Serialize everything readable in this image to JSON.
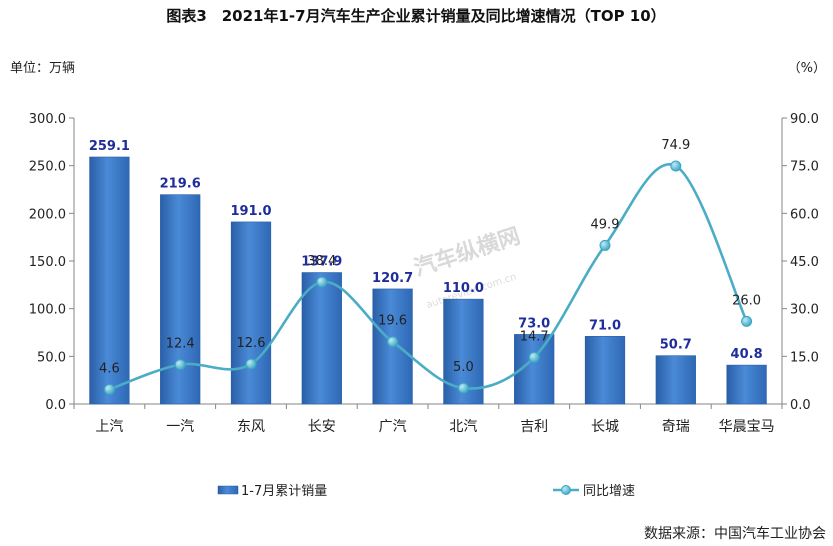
{
  "title": "图表3　2021年1-7月汽车生产企业累计销量及同比增速情况（TOP 10）",
  "left_unit": "单位：万辆",
  "right_unit": "（%）",
  "source": "数据来源：中国汽车工业协会",
  "watermark": "汽车纵横网",
  "watermark_sub": "autoreview.com.cn",
  "colors": {
    "bar": "#3a78c8",
    "line": "#4bacc6",
    "bar_label": "#1f2d9c"
  },
  "chart_data": {
    "type": "bar",
    "categories": [
      "上汽",
      "一汽",
      "东风",
      "长安",
      "广汽",
      "北汽",
      "吉利",
      "长城",
      "奇瑞",
      "华晨宝马"
    ],
    "series": [
      {
        "name": "1-7月累计销量",
        "type": "bar",
        "axis": "left",
        "values": [
          259.1,
          219.6,
          191.0,
          137.9,
          120.7,
          110.0,
          73.0,
          71.0,
          50.7,
          40.8
        ],
        "labels": [
          "259.1",
          "219.6",
          "191.0",
          "137.9",
          "120.7",
          "110.0",
          "73.0",
          "71.0",
          "50.7",
          "40.8"
        ]
      },
      {
        "name": "同比增速",
        "type": "line",
        "axis": "right",
        "values": [
          4.6,
          12.4,
          12.6,
          38.4,
          19.6,
          5.0,
          14.7,
          49.9,
          74.9,
          26.0
        ],
        "labels": [
          "4.6",
          "12.4",
          "12.6",
          "38.4",
          "19.6",
          "5.0",
          "14.7",
          "49.9",
          "74.9",
          "26.0"
        ]
      }
    ],
    "ylim_left": [
      0,
      300
    ],
    "yticks_left": [
      "0.0",
      "50.0",
      "100.0",
      "150.0",
      "200.0",
      "250.0",
      "300.0"
    ],
    "ylim_right": [
      0,
      90
    ],
    "yticks_right": [
      "0.0",
      "15.0",
      "30.0",
      "45.0",
      "60.0",
      "75.0",
      "90.0"
    ],
    "legend_position": "bottom",
    "grid": false
  }
}
